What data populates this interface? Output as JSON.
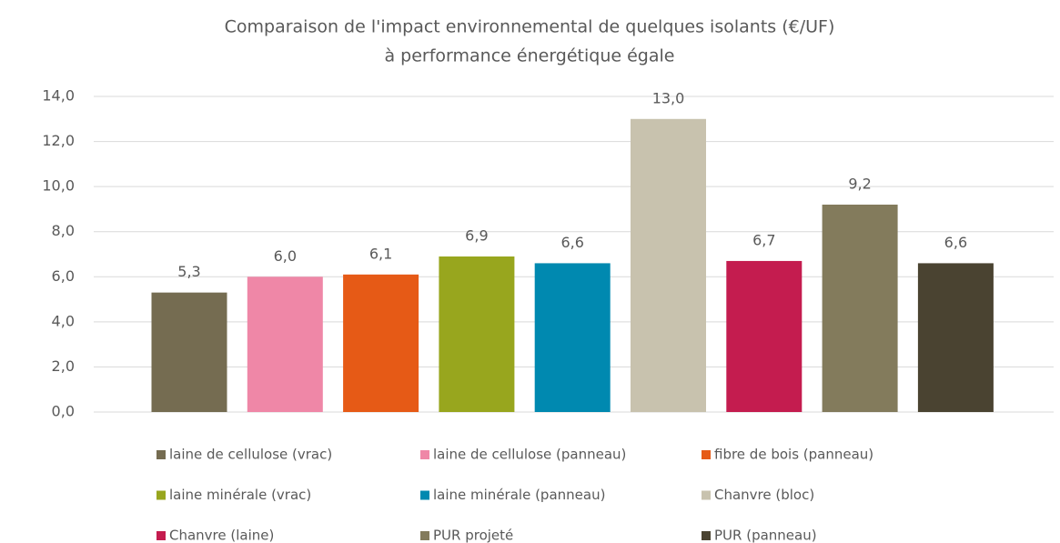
{
  "chart_data": {
    "type": "bar",
    "title": [
      "Comparaison de l'impact environnemental de quelques isolants (€/UF)",
      "à performance énergétique égale"
    ],
    "categories": [
      null
    ],
    "series": [
      {
        "name": "laine de cellulose (vrac)",
        "color": "#756c51",
        "values": [
          5.3
        ],
        "value_labels": [
          "5,3"
        ]
      },
      {
        "name": "laine de cellulose (panneau)",
        "color": "#ef87a7",
        "values": [
          6.0
        ],
        "value_labels": [
          "6,0"
        ]
      },
      {
        "name": "fibre de bois (panneau)",
        "color": "#e65a16",
        "values": [
          6.1
        ],
        "value_labels": [
          "6,1"
        ]
      },
      {
        "name": "laine minérale (vrac)",
        "color": "#98a61e",
        "values": [
          6.9
        ],
        "value_labels": [
          "6,9"
        ]
      },
      {
        "name": "laine minérale (panneau)",
        "color": "#0089b0",
        "values": [
          6.6
        ],
        "value_labels": [
          "6,6"
        ]
      },
      {
        "name": "Chanvre (bloc)",
        "color": "#c8c2ae",
        "values": [
          13.0
        ],
        "value_labels": [
          "13,0"
        ]
      },
      {
        "name": "Chanvre (laine)",
        "color": "#c41c4f",
        "values": [
          6.7
        ],
        "value_labels": [
          "6,7"
        ]
      },
      {
        "name": "PUR projeté",
        "color": "#837b5c",
        "values": [
          9.2
        ],
        "value_labels": [
          "9,2"
        ]
      },
      {
        "name": "PUR (panneau)",
        "color": "#4a4331",
        "values": [
          6.6
        ],
        "value_labels": [
          "6,6"
        ]
      }
    ],
    "ylim": [
      0,
      14
    ],
    "yticks": [
      {
        "value": 0,
        "label": "0,0"
      },
      {
        "value": 2,
        "label": "2,0"
      },
      {
        "value": 4,
        "label": "4,0"
      },
      {
        "value": 6,
        "label": "6,0"
      },
      {
        "value": 8,
        "label": "8,0"
      },
      {
        "value": 10,
        "label": "10,0"
      },
      {
        "value": 12,
        "label": "12,0"
      },
      {
        "value": 14,
        "label": "14,0"
      }
    ],
    "grid": true,
    "legend": "bottom"
  }
}
